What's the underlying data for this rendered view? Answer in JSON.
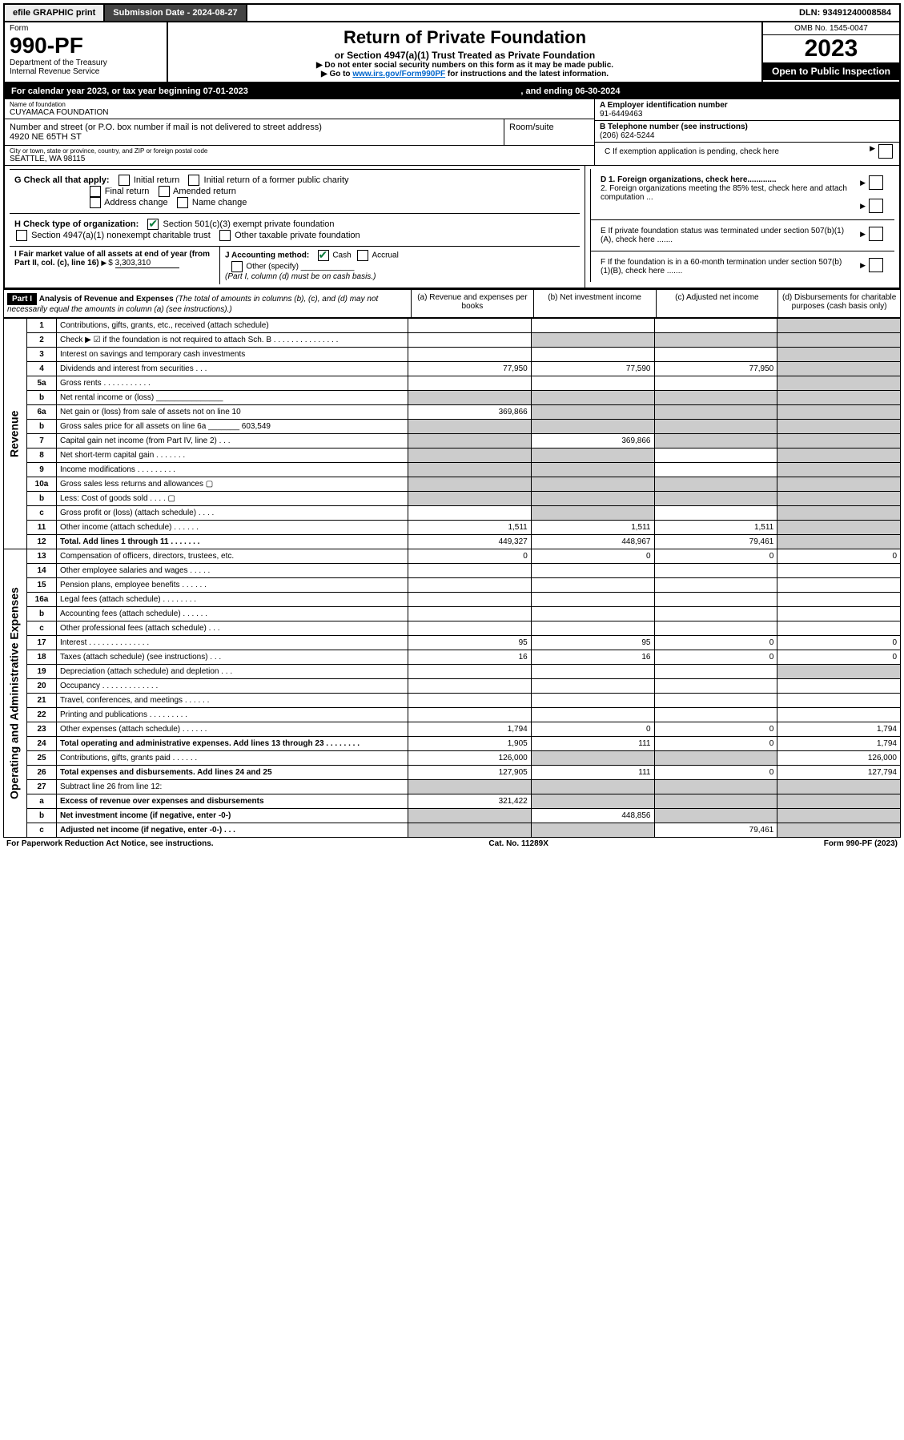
{
  "topbar": {
    "efile": "efile GRAPHIC print",
    "submission_label": "Submission Date - 2024-08-27",
    "dln": "DLN: 93491240008584"
  },
  "header": {
    "form_label": "Form",
    "form_number": "990-PF",
    "dept": "Department of the Treasury",
    "irs": "Internal Revenue Service",
    "title": "Return of Private Foundation",
    "subtitle": "or Section 4947(a)(1) Trust Treated as Private Foundation",
    "note1": "▶ Do not enter social security numbers on this form as it may be made public.",
    "note2_prefix": "▶ Go to ",
    "note2_link": "www.irs.gov/Form990PF",
    "note2_suffix": " for instructions and the latest information.",
    "omb": "OMB No. 1545-0047",
    "year": "2023",
    "open": "Open to Public Inspection"
  },
  "calyear": {
    "prefix": "For calendar year 2023, or tax year beginning 07-01-2023",
    "mid": ", and ending 06-30-2024"
  },
  "entity": {
    "name_label": "Name of foundation",
    "name": "CUYAMACA FOUNDATION",
    "addr_label": "Number and street (or P.O. box number if mail is not delivered to street address)",
    "addr": "4920 NE 65TH ST",
    "room_label": "Room/suite",
    "city_label": "City or town, state or province, country, and ZIP or foreign postal code",
    "city": "SEATTLE, WA  98115",
    "A_label": "A Employer identification number",
    "A_val": "91-6449463",
    "B_label": "B Telephone number (see instructions)",
    "B_val": "(206) 624-5244",
    "C_label": "C If exemption application is pending, check here",
    "D1": "D 1. Foreign organizations, check here.............",
    "D2": "2. Foreign organizations meeting the 85% test, check here and attach computation ...",
    "E": "E  If private foundation status was terminated under section 507(b)(1)(A), check here .......",
    "F": "F  If the foundation is in a 60-month termination under section 507(b)(1)(B), check here .......",
    "G_label": "G Check all that apply:",
    "G_opts": [
      "Initial return",
      "Initial return of a former public charity",
      "Final return",
      "Amended return",
      "Address change",
      "Name change"
    ],
    "H_label": "H Check type of organization:",
    "H_opt1": "Section 501(c)(3) exempt private foundation",
    "H_opt2": "Section 4947(a)(1) nonexempt charitable trust",
    "H_opt3": "Other taxable private foundation",
    "I_label": "I Fair market value of all assets at end of year (from Part II, col. (c), line 16)",
    "I_val": "3,303,310",
    "J_label": "J Accounting method:",
    "J_cash": "Cash",
    "J_accrual": "Accrual",
    "J_other": "Other (specify)",
    "J_note": "(Part I, column (d) must be on cash basis.)"
  },
  "part1": {
    "label": "Part I",
    "title": "Analysis of Revenue and Expenses",
    "title_note": "(The total of amounts in columns (b), (c), and (d) may not necessarily equal the amounts in column (a) (see instructions).)",
    "col_a": "(a) Revenue and expenses per books",
    "col_b": "(b) Net investment income",
    "col_c": "(c) Adjusted net income",
    "col_d": "(d) Disbursements for charitable purposes (cash basis only)"
  },
  "sections": {
    "revenue": "Revenue",
    "expenses": "Operating and Administrative Expenses"
  },
  "lines": [
    {
      "n": "1",
      "desc": "Contributions, gifts, grants, etc., received (attach schedule)",
      "a": "",
      "b": "",
      "c": "",
      "d": "",
      "shade_d": true
    },
    {
      "n": "2",
      "desc": "Check ▶ ☑ if the foundation is not required to attach Sch. B   .  .  .  .  .  .  .  .  .  .  .  .  .  .  .",
      "a": "",
      "b": "",
      "c": "",
      "d": "",
      "shade_b": true,
      "shade_c": true,
      "shade_d": true,
      "checkmark": true
    },
    {
      "n": "3",
      "desc": "Interest on savings and temporary cash investments",
      "a": "",
      "b": "",
      "c": "",
      "d": "",
      "shade_d": true
    },
    {
      "n": "4",
      "desc": "Dividends and interest from securities   .   .   .",
      "a": "77,950",
      "b": "77,590",
      "c": "77,950",
      "d": "",
      "shade_d": true
    },
    {
      "n": "5a",
      "desc": "Gross rents   .   .   .   .   .   .   .   .   .   .   .",
      "a": "",
      "b": "",
      "c": "",
      "d": "",
      "shade_d": true
    },
    {
      "n": "b",
      "desc": "Net rental income or (loss) _______________",
      "a": "",
      "b": "",
      "c": "",
      "d": "",
      "shade_a": true,
      "shade_b": true,
      "shade_c": true,
      "shade_d": true
    },
    {
      "n": "6a",
      "desc": "Net gain or (loss) from sale of assets not on line 10",
      "a": "369,866",
      "b": "",
      "c": "",
      "d": "",
      "shade_b": true,
      "shade_c": true,
      "shade_d": true
    },
    {
      "n": "b",
      "desc": "Gross sales price for all assets on line 6a _______ 603,549",
      "a": "",
      "b": "",
      "c": "",
      "d": "",
      "shade_a": true,
      "shade_b": true,
      "shade_c": true,
      "shade_d": true
    },
    {
      "n": "7",
      "desc": "Capital gain net income (from Part IV, line 2)   .   .   .",
      "a": "",
      "b": "369,866",
      "c": "",
      "d": "",
      "shade_a": true,
      "shade_c": true,
      "shade_d": true
    },
    {
      "n": "8",
      "desc": "Net short-term capital gain  .   .   .   .   .   .   .",
      "a": "",
      "b": "",
      "c": "",
      "d": "",
      "shade_a": true,
      "shade_b": true,
      "shade_d": true
    },
    {
      "n": "9",
      "desc": "Income modifications  .   .   .   .   .   .   .   .   .",
      "a": "",
      "b": "",
      "c": "",
      "d": "",
      "shade_a": true,
      "shade_b": true,
      "shade_d": true
    },
    {
      "n": "10a",
      "desc": "Gross sales less returns and allowances  ▢",
      "a": "",
      "b": "",
      "c": "",
      "d": "",
      "shade_a": true,
      "shade_b": true,
      "shade_c": true,
      "shade_d": true
    },
    {
      "n": "b",
      "desc": "Less: Cost of goods sold   .   .   .   .  ▢",
      "a": "",
      "b": "",
      "c": "",
      "d": "",
      "shade_a": true,
      "shade_b": true,
      "shade_c": true,
      "shade_d": true
    },
    {
      "n": "c",
      "desc": "Gross profit or (loss) (attach schedule)   .   .   .   .",
      "a": "",
      "b": "",
      "c": "",
      "d": "",
      "shade_b": true,
      "shade_d": true
    },
    {
      "n": "11",
      "desc": "Other income (attach schedule)   .   .   .   .   .   .",
      "a": "1,511",
      "b": "1,511",
      "c": "1,511",
      "d": "",
      "shade_d": true
    },
    {
      "n": "12",
      "desc": "Total. Add lines 1 through 11   .   .   .   .   .   .   .",
      "a": "449,327",
      "b": "448,967",
      "c": "79,461",
      "d": "",
      "shade_d": true,
      "bold": true
    }
  ],
  "expense_lines": [
    {
      "n": "13",
      "desc": "Compensation of officers, directors, trustees, etc.",
      "a": "0",
      "b": "0",
      "c": "0",
      "d": "0"
    },
    {
      "n": "14",
      "desc": "Other employee salaries and wages   .   .   .   .   .",
      "a": "",
      "b": "",
      "c": "",
      "d": ""
    },
    {
      "n": "15",
      "desc": "Pension plans, employee benefits  .   .   .   .   .   .",
      "a": "",
      "b": "",
      "c": "",
      "d": ""
    },
    {
      "n": "16a",
      "desc": "Legal fees (attach schedule)  .   .   .   .   .   .   .   .",
      "a": "",
      "b": "",
      "c": "",
      "d": ""
    },
    {
      "n": "b",
      "desc": "Accounting fees (attach schedule)  .   .   .   .   .   .",
      "a": "",
      "b": "",
      "c": "",
      "d": ""
    },
    {
      "n": "c",
      "desc": "Other professional fees (attach schedule)   .   .   .",
      "a": "",
      "b": "",
      "c": "",
      "d": ""
    },
    {
      "n": "17",
      "desc": "Interest  .   .   .   .   .   .   .   .   .   .   .   .   .   .",
      "a": "95",
      "b": "95",
      "c": "0",
      "d": "0"
    },
    {
      "n": "18",
      "desc": "Taxes (attach schedule) (see instructions)   .   .   .",
      "a": "16",
      "b": "16",
      "c": "0",
      "d": "0"
    },
    {
      "n": "19",
      "desc": "Depreciation (attach schedule) and depletion   .   .   .",
      "a": "",
      "b": "",
      "c": "",
      "d": "",
      "shade_d": true
    },
    {
      "n": "20",
      "desc": "Occupancy  .   .   .   .   .   .   .   .   .   .   .   .   .",
      "a": "",
      "b": "",
      "c": "",
      "d": ""
    },
    {
      "n": "21",
      "desc": "Travel, conferences, and meetings  .   .   .   .   .   .",
      "a": "",
      "b": "",
      "c": "",
      "d": ""
    },
    {
      "n": "22",
      "desc": "Printing and publications  .   .   .   .   .   .   .   .   .",
      "a": "",
      "b": "",
      "c": "",
      "d": ""
    },
    {
      "n": "23",
      "desc": "Other expenses (attach schedule)  .   .   .   .   .   .",
      "a": "1,794",
      "b": "0",
      "c": "0",
      "d": "1,794"
    },
    {
      "n": "24",
      "desc": "Total operating and administrative expenses. Add lines 13 through 23   .   .   .   .   .   .   .   .",
      "a": "1,905",
      "b": "111",
      "c": "0",
      "d": "1,794",
      "bold": true
    },
    {
      "n": "25",
      "desc": "Contributions, gifts, grants paid   .   .   .   .   .   .",
      "a": "126,000",
      "b": "",
      "c": "",
      "d": "126,000",
      "shade_b": true,
      "shade_c": true
    },
    {
      "n": "26",
      "desc": "Total expenses and disbursements. Add lines 24 and 25",
      "a": "127,905",
      "b": "111",
      "c": "0",
      "d": "127,794",
      "bold": true
    },
    {
      "n": "27",
      "desc": "Subtract line 26 from line 12:",
      "a": "",
      "b": "",
      "c": "",
      "d": "",
      "shade_a": true,
      "shade_b": true,
      "shade_c": true,
      "shade_d": true
    },
    {
      "n": "a",
      "desc": "Excess of revenue over expenses and disbursements",
      "a": "321,422",
      "b": "",
      "c": "",
      "d": "",
      "shade_b": true,
      "shade_c": true,
      "shade_d": true,
      "bold": true
    },
    {
      "n": "b",
      "desc": "Net investment income (if negative, enter -0-)",
      "a": "",
      "b": "448,856",
      "c": "",
      "d": "",
      "shade_a": true,
      "shade_c": true,
      "shade_d": true,
      "bold": true
    },
    {
      "n": "c",
      "desc": "Adjusted net income (if negative, enter -0-)   .   .   .",
      "a": "",
      "b": "",
      "c": "79,461",
      "d": "",
      "shade_a": true,
      "shade_b": true,
      "shade_d": true,
      "bold": true
    }
  ],
  "footer": {
    "left": "For Paperwork Reduction Act Notice, see instructions.",
    "mid": "Cat. No. 11289X",
    "right": "Form 990-PF (2023)"
  }
}
